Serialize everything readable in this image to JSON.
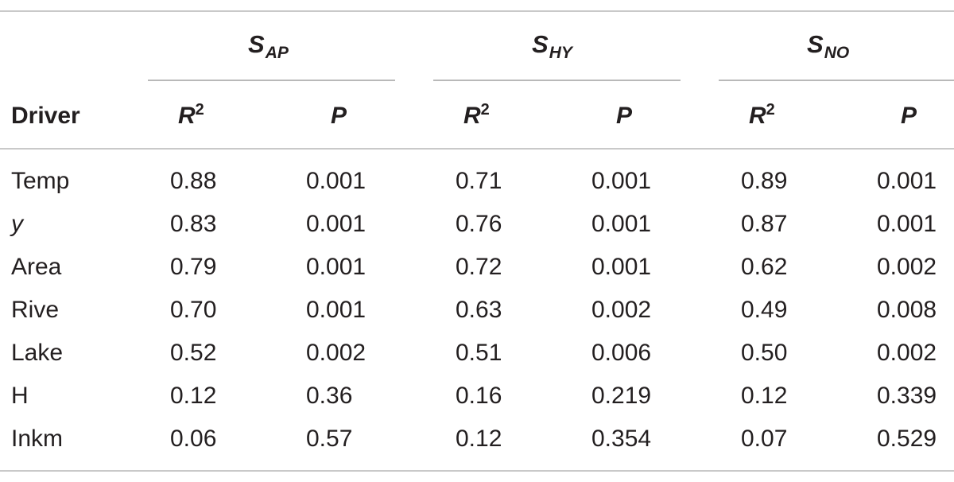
{
  "table": {
    "groups": [
      {
        "main": "S",
        "sub": "AP"
      },
      {
        "main": "S",
        "sub": "HY"
      },
      {
        "main": "S",
        "sub": "NO"
      }
    ],
    "driver_header": "Driver",
    "col_headers": [
      {
        "main": "R",
        "sup": "2"
      },
      {
        "main": "P",
        "sup": ""
      },
      {
        "main": "R",
        "sup": "2"
      },
      {
        "main": "P",
        "sup": ""
      },
      {
        "main": "R",
        "sup": "2"
      },
      {
        "main": "P",
        "sup": ""
      }
    ],
    "rows": [
      {
        "driver": "Temp",
        "italic": false,
        "values": [
          "0.88",
          "0.001",
          "0.71",
          "0.001",
          "0.89",
          "0.001"
        ]
      },
      {
        "driver": "y",
        "italic": true,
        "values": [
          "0.83",
          "0.001",
          "0.76",
          "0.001",
          "0.87",
          "0.001"
        ]
      },
      {
        "driver": "Area",
        "italic": false,
        "values": [
          "0.79",
          "0.001",
          "0.72",
          "0.001",
          "0.62",
          "0.002"
        ]
      },
      {
        "driver": "Rive",
        "italic": false,
        "values": [
          "0.70",
          "0.001",
          "0.63",
          "0.002",
          "0.49",
          "0.008"
        ]
      },
      {
        "driver": "Lake",
        "italic": false,
        "values": [
          "0.52",
          "0.002",
          "0.51",
          "0.006",
          "0.50",
          "0.002"
        ]
      },
      {
        "driver": "H",
        "italic": false,
        "values": [
          "0.12",
          "0.36",
          "0.16",
          "0.219",
          "0.12",
          "0.339"
        ]
      },
      {
        "driver": "Inkm",
        "italic": false,
        "values": [
          "0.06",
          "0.57",
          "0.12",
          "0.354",
          "0.07",
          "0.529"
        ]
      }
    ]
  }
}
